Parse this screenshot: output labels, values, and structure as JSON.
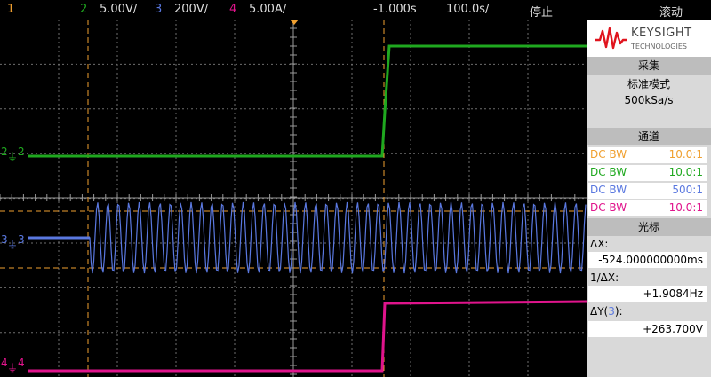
{
  "topbar": {
    "ch1_num": "1",
    "ch2_num": "2",
    "ch2_scale": "5.00V/",
    "ch3_num": "3",
    "ch3_scale": "200V/",
    "ch4_num": "4",
    "ch4_scale": "5.00A/",
    "time_offset": "-1.000s",
    "time_scale": "100.0s/",
    "run_state": "停止",
    "mode": "滚动"
  },
  "colors": {
    "ch1": "#f0a030",
    "ch2": "#1fa81f",
    "ch3": "#5a78e0",
    "ch4": "#e0148c",
    "grid": "#6e6e6e"
  },
  "markers": {
    "ch2_left": "2",
    "ch2_label": "2",
    "ch3_left": "3",
    "ch3_label": "3",
    "ch4_left": "4",
    "ch4_label": "4"
  },
  "panel": {
    "brand": "KEYSIGHT",
    "brand_sub": "TECHNOLOGIES",
    "acq_title": "采集",
    "acq_mode": "标准模式",
    "acq_rate": "500kSa/s",
    "channels_title": "通道",
    "channels": [
      {
        "coupling": "DC BW",
        "probe": "10.0:1"
      },
      {
        "coupling": "DC BW",
        "probe": "10.0:1"
      },
      {
        "coupling": "DC BW",
        "probe": "500:1"
      },
      {
        "coupling": "DC BW",
        "probe": "10.0:1"
      }
    ],
    "cursors_title": "光标",
    "dx_label": "ΔX:",
    "dx_value": "-524.000000000ms",
    "inv_dx_label": "1/ΔX:",
    "inv_dx_value": "+1.9084Hz",
    "dy_label_pre": "ΔY(",
    "dy_label_ch": "3",
    "dy_label_post": "):",
    "dy_value": "+263.700V"
  }
}
